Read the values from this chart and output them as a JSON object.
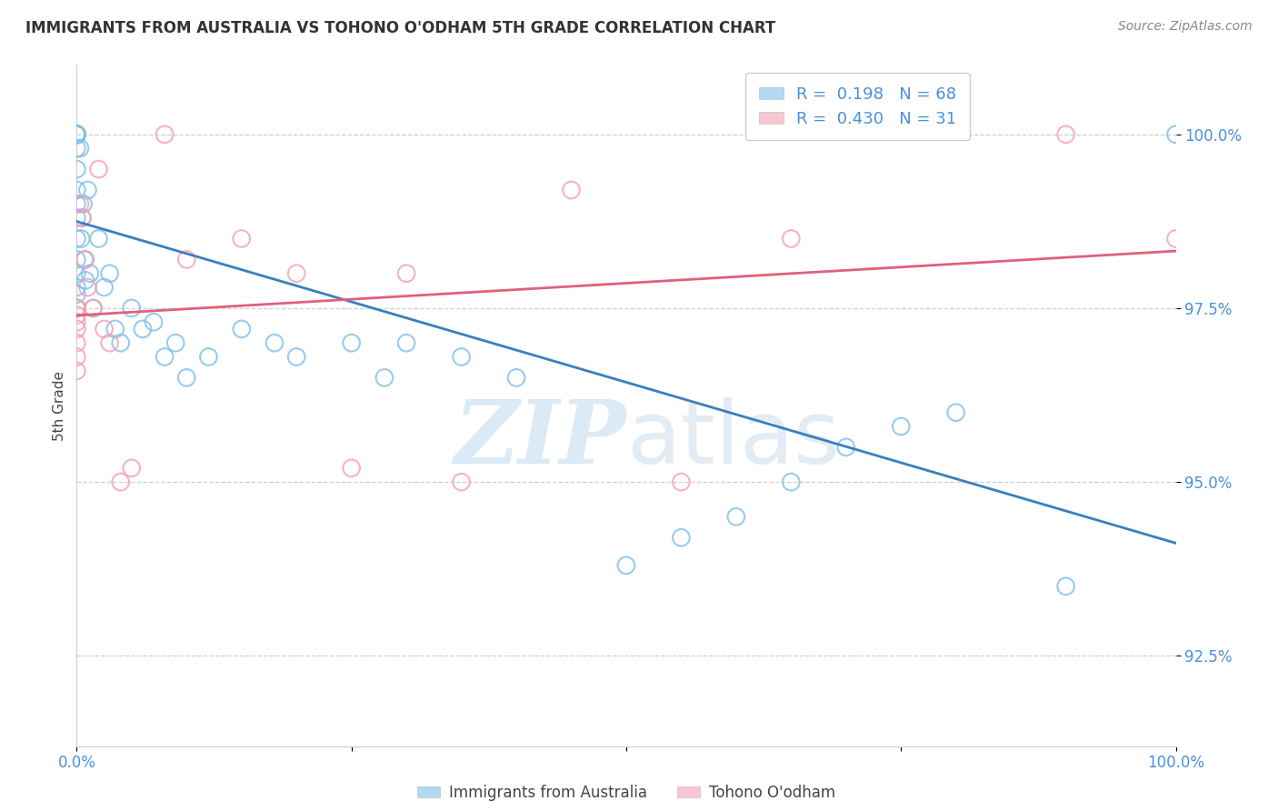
{
  "title": "IMMIGRANTS FROM AUSTRALIA VS TOHONO O'ODHAM 5TH GRADE CORRELATION CHART",
  "source": "Source: ZipAtlas.com",
  "ylabel": "5th Grade",
  "ytick_labels": [
    "92.5%",
    "95.0%",
    "97.5%",
    "100.0%"
  ],
  "ytick_values": [
    92.5,
    95.0,
    97.5,
    100.0
  ],
  "legend_label1": "Immigrants from Australia",
  "legend_label2": "Tohono O'odham",
  "R1": 0.198,
  "N1": 68,
  "R2": 0.43,
  "N2": 31,
  "blue_color": "#7fbfea",
  "pink_color": "#f4a0b5",
  "blue_line_color": "#3a7fbd",
  "pink_line_color": "#e0607a",
  "blue_scatter_x": [
    0.0,
    0.0,
    0.0,
    0.0,
    0.0,
    0.0,
    0.0,
    0.0,
    0.0,
    0.0,
    0.0,
    0.0,
    0.0,
    0.0,
    0.0,
    0.0,
    0.0,
    0.0,
    0.0,
    0.0,
    0.0,
    0.0,
    0.0,
    0.0,
    0.0,
    0.0,
    0.0,
    0.0,
    0.0,
    0.0,
    0.3,
    0.4,
    0.5,
    0.6,
    0.7,
    0.8,
    1.0,
    1.2,
    1.5,
    2.0,
    2.5,
    3.0,
    3.5,
    4.0,
    5.0,
    6.0,
    7.0,
    8.0,
    9.0,
    10.0,
    12.0,
    15.0,
    18.0,
    20.0,
    25.0,
    28.0,
    30.0,
    35.0,
    40.0,
    50.0,
    55.0,
    60.0,
    65.0,
    70.0,
    75.0,
    80.0,
    90.0,
    100.0
  ],
  "blue_scatter_y": [
    100.0,
    100.0,
    100.0,
    100.0,
    100.0,
    100.0,
    100.0,
    100.0,
    100.0,
    100.0,
    100.0,
    100.0,
    100.0,
    100.0,
    100.0,
    100.0,
    100.0,
    100.0,
    100.0,
    99.8,
    99.5,
    99.2,
    99.0,
    98.8,
    98.5,
    98.2,
    98.0,
    97.8,
    97.7,
    97.5,
    99.8,
    98.5,
    98.8,
    99.0,
    98.2,
    97.9,
    99.2,
    98.0,
    97.5,
    98.5,
    97.8,
    98.0,
    97.2,
    97.0,
    97.5,
    97.2,
    97.3,
    96.8,
    97.0,
    96.5,
    96.8,
    97.2,
    97.0,
    96.8,
    97.0,
    96.5,
    97.0,
    96.8,
    96.5,
    93.8,
    94.2,
    94.5,
    95.0,
    95.5,
    95.8,
    96.0,
    93.5,
    100.0
  ],
  "pink_scatter_x": [
    0.0,
    0.0,
    0.0,
    0.0,
    0.0,
    0.0,
    0.0,
    0.0,
    0.0,
    0.3,
    0.5,
    0.8,
    1.0,
    1.5,
    2.0,
    2.5,
    3.0,
    4.0,
    5.0,
    8.0,
    10.0,
    15.0,
    20.0,
    25.0,
    30.0,
    35.0,
    45.0,
    55.0,
    65.0,
    90.0,
    100.0
  ],
  "pink_scatter_y": [
    97.5,
    97.5,
    97.5,
    97.4,
    97.3,
    97.2,
    97.0,
    96.8,
    96.6,
    99.0,
    98.8,
    98.2,
    97.8,
    97.5,
    99.5,
    97.2,
    97.0,
    95.0,
    95.2,
    100.0,
    98.2,
    98.5,
    98.0,
    95.2,
    98.0,
    95.0,
    99.2,
    95.0,
    98.5,
    100.0,
    98.5
  ],
  "xmin": 0.0,
  "xmax": 100.0,
  "ymin": 91.2,
  "ymax": 101.0,
  "watermark_zip": "ZIP",
  "watermark_atlas": "atlas",
  "background_color": "#ffffff"
}
